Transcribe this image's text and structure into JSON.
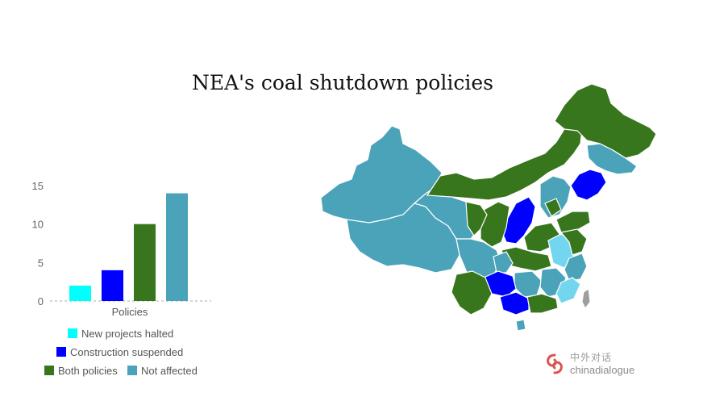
{
  "title": "NEA's coal shutdown policies",
  "colors": {
    "new_projects_halted": "#00ffff",
    "construction_suspended": "#0000ff",
    "both_policies": "#38761d",
    "not_affected": "#4ba3b9",
    "light_region": "#72d7ee",
    "border": "#ffffff",
    "taiwan": "#9e9e9e"
  },
  "chart_data": {
    "type": "bar",
    "categories": [
      "Policies"
    ],
    "series": [
      {
        "name": "New projects halted",
        "values": [
          2
        ],
        "color": "#00ffff"
      },
      {
        "name": "Construction suspended",
        "values": [
          4
        ],
        "color": "#0000ff"
      },
      {
        "name": "Both policies",
        "values": [
          10
        ],
        "color": "#38761d"
      },
      {
        "name": "Not affected",
        "values": [
          14
        ],
        "color": "#4ba3b9"
      }
    ],
    "title": "",
    "xlabel": "Policies",
    "ylabel": "",
    "ylim": [
      0,
      15
    ],
    "yticks": [
      "0",
      "5",
      "10",
      "15"
    ],
    "grid": false,
    "legend_position": "bottom"
  },
  "legend": [
    {
      "label": "New projects halted",
      "color": "#00ffff"
    },
    {
      "label": "Construction suspended",
      "color": "#0000ff"
    },
    {
      "label": "Both policies",
      "color": "#38761d"
    },
    {
      "label": "Not affected",
      "color": "#4ba3b9"
    }
  ],
  "brand": {
    "name_zh": "中外对话",
    "name_en": "chinadialogue",
    "logo_color": "#d9534f"
  }
}
